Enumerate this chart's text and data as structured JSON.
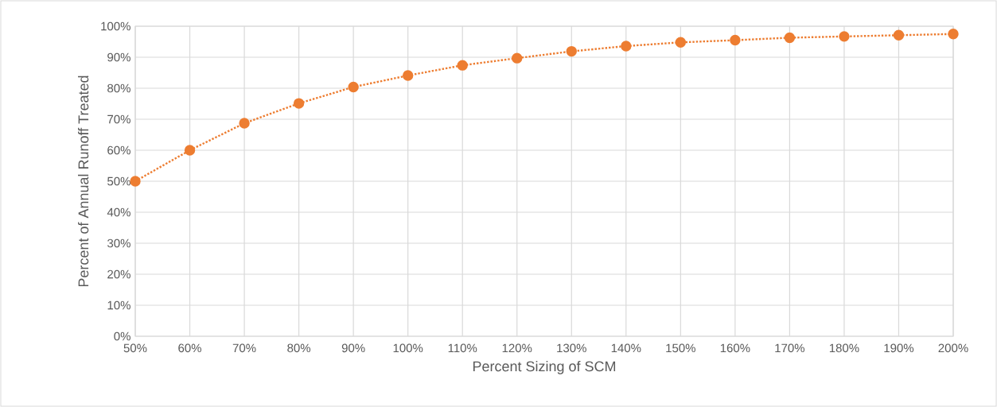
{
  "chart_data": {
    "type": "line",
    "xlabel": "Percent Sizing of SCM",
    "ylabel": "Percent of Annual Runoff Treated",
    "categories": [
      "50%",
      "60%",
      "70%",
      "80%",
      "90%",
      "100%",
      "110%",
      "120%",
      "130%",
      "140%",
      "150%",
      "160%",
      "170%",
      "180%",
      "190%",
      "200%"
    ],
    "series": [
      {
        "color": "#ed7d31",
        "values": [
          50.0,
          60.0,
          68.7,
          75.1,
          80.4,
          84.1,
          87.4,
          89.7,
          91.9,
          93.6,
          94.8,
          95.5,
          96.3,
          96.7,
          97.1,
          97.5
        ]
      }
    ],
    "ylim": [
      0,
      100
    ],
    "yticks": [
      {
        "value": 0,
        "label": "0%"
      },
      {
        "value": 10,
        "label": "10%"
      },
      {
        "value": 20,
        "label": "20%"
      },
      {
        "value": 30,
        "label": "30%"
      },
      {
        "value": 40,
        "label": "40%"
      },
      {
        "value": 50,
        "label": "50%"
      },
      {
        "value": 60,
        "label": "60%"
      },
      {
        "value": 70,
        "label": "70%"
      },
      {
        "value": 80,
        "label": "80%"
      },
      {
        "value": 90,
        "label": "90%"
      },
      {
        "value": 100,
        "label": "100%"
      }
    ],
    "grid": true,
    "marker": "circle",
    "line_style": "dotted"
  }
}
